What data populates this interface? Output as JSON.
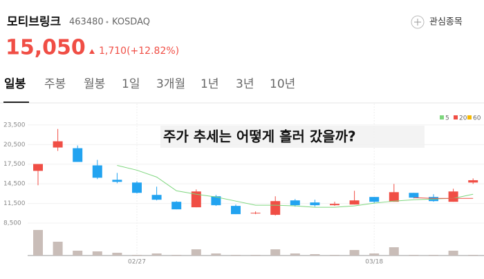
{
  "header": {
    "name": "모티브링크",
    "code": "463480",
    "market": "KOSDAQ",
    "watch_label": "관심종목",
    "price": "15,050",
    "change": "1,710(+12.82%)"
  },
  "tabs": [
    "일봉",
    "주봉",
    "월봉",
    "1일",
    "3개월",
    "1년",
    "3년",
    "10년"
  ],
  "chart_data": {
    "type": "candlestick",
    "title": "주가 추세는 어떻게 흘러 갔을까?",
    "categories": [
      null,
      null,
      null,
      null,
      null,
      "02/27",
      null,
      null,
      null,
      null,
      null,
      null,
      null,
      null,
      null,
      null,
      null,
      "03/18",
      null,
      null,
      null,
      null,
      null
    ],
    "open": [
      16480,
      20050,
      19945,
      17320,
      15115,
      14695,
      12805,
      11755,
      10915,
      12595,
      11125,
      9970,
      9760,
      11965,
      11650,
      11230,
      11335,
      12490,
      11755,
      13120,
      12490,
      11755,
      14695
    ],
    "high": [
      17530,
      22885,
      20365,
      18160,
      16165,
      14905,
      14065,
      11860,
      13645,
      12805,
      11335,
      10285,
      12595,
      12175,
      12070,
      11755,
      13435,
      12490,
      14485,
      13120,
      12910,
      13750,
      15325
    ],
    "low": [
      14275,
      19525,
      17845,
      15220,
      14590,
      13015,
      11965,
      10600,
      10915,
      11125,
      9865,
      9865,
      9655,
      11020,
      11020,
      11125,
      11335,
      11545,
      11755,
      12280,
      11755,
      11755,
      14485
    ],
    "close": [
      17530,
      21000,
      17845,
      15430,
      14800,
      13120,
      12070,
      10600,
      13330,
      11230,
      9865,
      10075,
      11860,
      11230,
      11230,
      11440,
      11965,
      11755,
      13225,
      12385,
      11860,
      13330,
      15050
    ],
    "volume": [
      37,
      20,
      7,
      6,
      4,
      1,
      3,
      1,
      9,
      3,
      1,
      1,
      9,
      3,
      2,
      1,
      8,
      3,
      12,
      1,
      1,
      7,
      1
    ],
    "volume_lim": [
      0,
      40
    ],
    "ma": [
      {
        "name": "5",
        "color": "#7ed67e",
        "values": [
          null,
          null,
          null,
          null,
          17320,
          16585,
          15535,
          13435,
          12910,
          12490,
          11860,
          11230,
          11230,
          11125,
          10915,
          10915,
          11125,
          11545,
          11860,
          12070,
          12175,
          12280,
          12910
        ]
      },
      {
        "name": "20",
        "color": "#f04e45",
        "values": [
          null,
          null,
          null,
          null,
          null,
          null,
          null,
          null,
          null,
          null,
          null,
          null,
          null,
          null,
          null,
          null,
          null,
          null,
          null,
          12385,
          12280,
          12280,
          12280
        ]
      },
      {
        "name": "60",
        "color": "#f5b800",
        "values": [
          null,
          null,
          null,
          null,
          null,
          null,
          null,
          null,
          null,
          null,
          null,
          null,
          null,
          null,
          null,
          null,
          null,
          null,
          null,
          null,
          null,
          null,
          null
        ]
      }
    ],
    "up_color": "#f04e45",
    "down_color": "#22a3f0",
    "volume_color": "#c9bdb8",
    "ylim": [
      7975,
      25600
    ],
    "yticks": [
      {
        "value": 8500,
        "label": "8,500"
      },
      {
        "value": 11500,
        "label": "11,500"
      },
      {
        "value": 14500,
        "label": "14,500"
      },
      {
        "value": 17500,
        "label": "17,500"
      },
      {
        "value": 20500,
        "label": "20,500"
      },
      {
        "value": 23500,
        "label": "23,500"
      }
    ],
    "grid": true
  }
}
